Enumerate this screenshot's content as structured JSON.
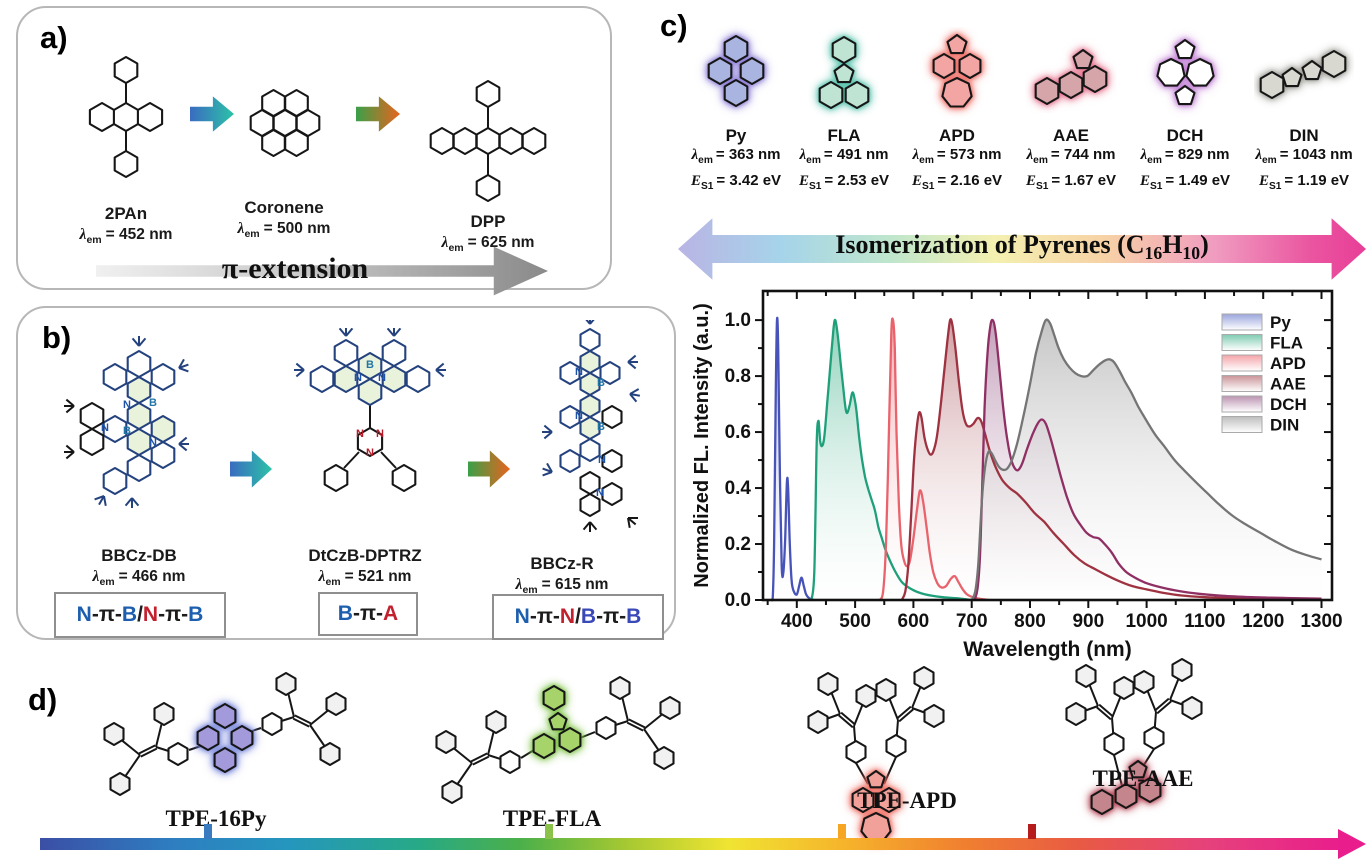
{
  "labels": {
    "lambda": "λ",
    "em": "em",
    "E": "E",
    "S1": "S1"
  },
  "panels": {
    "a": {
      "label": "a)",
      "arrow_label": "π-extension",
      "molecules": [
        {
          "name": "2PAn",
          "lambda": "= 452 nm"
        },
        {
          "name": "Coronene",
          "lambda": "= 500 nm"
        },
        {
          "name": "DPP",
          "lambda": "= 625 nm"
        }
      ]
    },
    "b": {
      "label": "b)",
      "molecules": [
        {
          "name": "BBCz-DB",
          "lambda": "= 466 nm",
          "tag": [
            {
              "t": "N",
              "c": "blue"
            },
            {
              "t": "-π-",
              "c": "black"
            },
            {
              "t": "B",
              "c": "blue"
            },
            {
              "t": "/ ",
              "c": "black"
            },
            {
              "t": "N",
              "c": "red"
            },
            {
              "t": "-π-",
              "c": "black"
            },
            {
              "t": "B",
              "c": "blue"
            }
          ]
        },
        {
          "name": "DtCzB-DPTRZ",
          "lambda": "= 521 nm",
          "tag": [
            {
              "t": "B",
              "c": "blue"
            },
            {
              "t": "-π-",
              "c": "black"
            },
            {
              "t": "A",
              "c": "red"
            }
          ]
        },
        {
          "name": "BBCz-R",
          "lambda": "= 615 nm",
          "tag": [
            {
              "t": "N",
              "c": "blue"
            },
            {
              "t": "-π-",
              "c": "black"
            },
            {
              "t": "N",
              "c": "red"
            },
            {
              "t": "/ ",
              "c": "black"
            },
            {
              "t": "B",
              "c": "indigo"
            },
            {
              "t": "-π-",
              "c": "black"
            },
            {
              "t": "B",
              "c": "indigo"
            }
          ]
        }
      ]
    },
    "c": {
      "label": "c)",
      "arrow_text": {
        "pre": "Isomerization of Pyrenes (C",
        "sub1": "16",
        "mid": "H",
        "sub2": "10",
        "post": ")"
      },
      "molecules": [
        {
          "name": "Py",
          "key": "py",
          "lambda": "= 363 nm",
          "es1": "= 3.42 eV",
          "fill": "#a9b4e0",
          "glow": "#8b7ed6"
        },
        {
          "name": "FLA",
          "key": "fla",
          "lambda": "= 491 nm",
          "es1": "= 2.53 eV",
          "fill": "#bfe4d4",
          "glow": "#56c2ac"
        },
        {
          "name": "APD",
          "key": "apd",
          "lambda": "= 573 nm",
          "es1": "= 2.16 eV",
          "fill": "#f2a5a2",
          "glow": "#ee6a62"
        },
        {
          "name": "AAE",
          "key": "aae",
          "lambda": "= 744 nm",
          "es1": "= 1.67 eV",
          "fill": "#d6a5a9",
          "glow": "#e4738e"
        },
        {
          "name": "DCH",
          "key": "dch",
          "lambda": "= 829 nm",
          "es1": "= 1.49 eV",
          "fill": "#ffffff",
          "glow": "#c07cd4"
        },
        {
          "name": "DIN",
          "key": "din",
          "lambda": "= 1043 nm",
          "es1": "= 1.19 eV",
          "fill": "#d9d8d0",
          "glow": "#9d9c95"
        }
      ]
    },
    "d": {
      "label": "d)",
      "molecules": [
        {
          "name": "TPE-16Py",
          "key": "tpe16py",
          "fill": "#a29ada",
          "glow": "#6f7fd8",
          "tick": "#3a7bbf"
        },
        {
          "name": "TPE-FLA",
          "key": "tpefla",
          "fill": "#a6d46b",
          "glow": "#7cc242",
          "tick": "#8bc34a"
        },
        {
          "name": "TPE-APD",
          "key": "tpeapd",
          "fill": "#f2a09a",
          "glow": "#ee655a",
          "tick": "#f6a623"
        },
        {
          "name": "TPE-AAE",
          "key": "tpeaae",
          "fill": "#c4868c",
          "glow": "#b64455",
          "tick": "#b71c1c"
        }
      ]
    }
  },
  "chart_data": {
    "type": "line",
    "xlabel": "Wavelength (nm)",
    "ylabel": "Normalized FL. Intensity (a.u.)",
    "xlim": [
      342,
      1318
    ],
    "ylim": [
      0,
      1.104
    ],
    "x_ticks": [
      400,
      500,
      600,
      700,
      800,
      900,
      1000,
      1100,
      1200,
      1300
    ],
    "y_ticks": [
      0.0,
      0.2,
      0.4,
      0.6,
      0.8,
      1.0
    ],
    "grid": false,
    "legend_position": "upper right",
    "series": [
      {
        "name": "Py",
        "line_color": "#4753b8",
        "fill_color": "#9aa5dd",
        "points": [
          [
            357,
            0
          ],
          [
            359,
            0.02
          ],
          [
            361,
            0.2
          ],
          [
            364,
            0.75
          ],
          [
            366,
            1.0
          ],
          [
            368,
            0.9
          ],
          [
            371,
            0.45
          ],
          [
            374,
            0.12
          ],
          [
            377,
            0.1
          ],
          [
            380,
            0.22
          ],
          [
            383,
            0.42
          ],
          [
            385,
            0.4
          ],
          [
            388,
            0.2
          ],
          [
            391,
            0.07
          ],
          [
            395,
            0.03
          ],
          [
            400,
            0.02
          ],
          [
            404,
            0.05
          ],
          [
            408,
            0.08
          ],
          [
            412,
            0.05
          ],
          [
            416,
            0.02
          ],
          [
            422,
            0.005
          ],
          [
            430,
            0
          ]
        ]
      },
      {
        "name": "FLA",
        "line_color": "#1fa07a",
        "fill_color": "#7ecbb0",
        "points": [
          [
            425,
            0
          ],
          [
            430,
            0.1
          ],
          [
            434,
            0.55
          ],
          [
            437,
            0.64
          ],
          [
            440,
            0.57
          ],
          [
            443,
            0.55
          ],
          [
            447,
            0.58
          ],
          [
            452,
            0.7
          ],
          [
            458,
            0.85
          ],
          [
            463,
            0.97
          ],
          [
            466,
            1.0
          ],
          [
            470,
            0.95
          ],
          [
            475,
            0.85
          ],
          [
            480,
            0.75
          ],
          [
            484,
            0.68
          ],
          [
            487,
            0.67
          ],
          [
            491,
            0.7
          ],
          [
            495,
            0.74
          ],
          [
            498,
            0.73
          ],
          [
            502,
            0.68
          ],
          [
            507,
            0.58
          ],
          [
            512,
            0.5
          ],
          [
            517,
            0.44
          ],
          [
            522,
            0.4
          ],
          [
            528,
            0.36
          ],
          [
            534,
            0.32
          ],
          [
            540,
            0.26
          ],
          [
            546,
            0.22
          ],
          [
            552,
            0.18
          ],
          [
            562,
            0.13
          ],
          [
            572,
            0.09
          ],
          [
            582,
            0.06
          ],
          [
            600,
            0.035
          ],
          [
            620,
            0.02
          ],
          [
            650,
            0.01
          ],
          [
            680,
            0.005
          ],
          [
            700,
            0
          ]
        ]
      },
      {
        "name": "APD",
        "line_color": "#e8636c",
        "fill_color": "#f4a3a8",
        "points": [
          [
            542,
            0
          ],
          [
            548,
            0.03
          ],
          [
            553,
            0.2
          ],
          [
            558,
            0.6
          ],
          [
            562,
            0.95
          ],
          [
            565,
            1.0
          ],
          [
            568,
            0.9
          ],
          [
            571,
            0.6
          ],
          [
            575,
            0.35
          ],
          [
            579,
            0.2
          ],
          [
            584,
            0.14
          ],
          [
            589,
            0.12
          ],
          [
            594,
            0.14
          ],
          [
            600,
            0.22
          ],
          [
            606,
            0.32
          ],
          [
            611,
            0.39
          ],
          [
            616,
            0.36
          ],
          [
            622,
            0.27
          ],
          [
            628,
            0.17
          ],
          [
            634,
            0.1
          ],
          [
            641,
            0.06
          ],
          [
            648,
            0.045
          ],
          [
            656,
            0.05
          ],
          [
            664,
            0.075
          ],
          [
            671,
            0.085
          ],
          [
            677,
            0.065
          ],
          [
            684,
            0.04
          ],
          [
            692,
            0.02
          ],
          [
            702,
            0.01
          ],
          [
            715,
            0.004
          ],
          [
            730,
            0
          ]
        ]
      },
      {
        "name": "AAE",
        "line_color": "#9e3240",
        "fill_color": "#c99297",
        "points": [
          [
            580,
            0
          ],
          [
            586,
            0.03
          ],
          [
            591,
            0.12
          ],
          [
            596,
            0.3
          ],
          [
            601,
            0.5
          ],
          [
            606,
            0.62
          ],
          [
            610,
            0.67
          ],
          [
            614,
            0.65
          ],
          [
            619,
            0.58
          ],
          [
            624,
            0.54
          ],
          [
            629,
            0.52
          ],
          [
            634,
            0.53
          ],
          [
            640,
            0.58
          ],
          [
            646,
            0.68
          ],
          [
            652,
            0.8
          ],
          [
            658,
            0.92
          ],
          [
            663,
            1.0
          ],
          [
            667,
            0.98
          ],
          [
            672,
            0.9
          ],
          [
            678,
            0.78
          ],
          [
            684,
            0.68
          ],
          [
            690,
            0.63
          ],
          [
            696,
            0.62
          ],
          [
            703,
            0.63
          ],
          [
            710,
            0.65
          ],
          [
            716,
            0.64
          ],
          [
            722,
            0.6
          ],
          [
            730,
            0.54
          ],
          [
            740,
            0.48
          ],
          [
            752,
            0.43
          ],
          [
            765,
            0.4
          ],
          [
            778,
            0.38
          ],
          [
            792,
            0.35
          ],
          [
            808,
            0.31
          ],
          [
            824,
            0.28
          ],
          [
            840,
            0.24
          ],
          [
            858,
            0.2
          ],
          [
            876,
            0.16
          ],
          [
            894,
            0.13
          ],
          [
            912,
            0.11
          ],
          [
            930,
            0.09
          ],
          [
            950,
            0.07
          ],
          [
            975,
            0.05
          ],
          [
            1000,
            0.038
          ],
          [
            1030,
            0.025
          ],
          [
            1060,
            0.016
          ],
          [
            1100,
            0.01
          ],
          [
            1150,
            0.006
          ],
          [
            1200,
            0.004
          ],
          [
            1300,
            0.003
          ]
        ]
      },
      {
        "name": "DCH",
        "line_color": "#8f2f63",
        "fill_color": "#bb93b1",
        "points": [
          [
            705,
            0
          ],
          [
            710,
            0.04
          ],
          [
            714,
            0.15
          ],
          [
            718,
            0.4
          ],
          [
            722,
            0.68
          ],
          [
            727,
            0.88
          ],
          [
            732,
            0.98
          ],
          [
            736,
            1.0
          ],
          [
            740,
            0.97
          ],
          [
            745,
            0.88
          ],
          [
            750,
            0.77
          ],
          [
            756,
            0.65
          ],
          [
            762,
            0.56
          ],
          [
            768,
            0.5
          ],
          [
            774,
            0.47
          ],
          [
            780,
            0.465
          ],
          [
            787,
            0.49
          ],
          [
            795,
            0.54
          ],
          [
            804,
            0.59
          ],
          [
            813,
            0.63
          ],
          [
            820,
            0.645
          ],
          [
            827,
            0.63
          ],
          [
            835,
            0.58
          ],
          [
            844,
            0.51
          ],
          [
            853,
            0.44
          ],
          [
            863,
            0.37
          ],
          [
            874,
            0.31
          ],
          [
            886,
            0.27
          ],
          [
            897,
            0.24
          ],
          [
            908,
            0.225
          ],
          [
            918,
            0.22
          ],
          [
            928,
            0.2
          ],
          [
            940,
            0.17
          ],
          [
            952,
            0.13
          ],
          [
            965,
            0.1
          ],
          [
            980,
            0.08
          ],
          [
            1000,
            0.06
          ],
          [
            1025,
            0.045
          ],
          [
            1055,
            0.032
          ],
          [
            1090,
            0.022
          ],
          [
            1130,
            0.015
          ],
          [
            1180,
            0.01
          ],
          [
            1240,
            0.007
          ],
          [
            1300,
            0.005
          ]
        ]
      },
      {
        "name": "DIN",
        "line_color": "#757575",
        "fill_color": "#bdbdbd",
        "points": [
          [
            700,
            0
          ],
          [
            706,
            0.03
          ],
          [
            711,
            0.12
          ],
          [
            715,
            0.27
          ],
          [
            719,
            0.4
          ],
          [
            724,
            0.49
          ],
          [
            729,
            0.53
          ],
          [
            734,
            0.525
          ],
          [
            740,
            0.5
          ],
          [
            747,
            0.475
          ],
          [
            754,
            0.465
          ],
          [
            761,
            0.47
          ],
          [
            769,
            0.5
          ],
          [
            778,
            0.56
          ],
          [
            788,
            0.65
          ],
          [
            799,
            0.76
          ],
          [
            810,
            0.88
          ],
          [
            820,
            0.96
          ],
          [
            827,
            1.0
          ],
          [
            834,
            0.99
          ],
          [
            841,
            0.95
          ],
          [
            849,
            0.9
          ],
          [
            858,
            0.86
          ],
          [
            868,
            0.83
          ],
          [
            878,
            0.81
          ],
          [
            888,
            0.8
          ],
          [
            898,
            0.8
          ],
          [
            908,
            0.82
          ],
          [
            918,
            0.84
          ],
          [
            928,
            0.855
          ],
          [
            936,
            0.86
          ],
          [
            944,
            0.85
          ],
          [
            953,
            0.82
          ],
          [
            963,
            0.78
          ],
          [
            974,
            0.74
          ],
          [
            986,
            0.69
          ],
          [
            1000,
            0.64
          ],
          [
            1015,
            0.59
          ],
          [
            1030,
            0.55
          ],
          [
            1048,
            0.5
          ],
          [
            1066,
            0.46
          ],
          [
            1085,
            0.42
          ],
          [
            1105,
            0.38
          ],
          [
            1125,
            0.34
          ],
          [
            1148,
            0.3
          ],
          [
            1170,
            0.27
          ],
          [
            1195,
            0.24
          ],
          [
            1220,
            0.21
          ],
          [
            1248,
            0.18
          ],
          [
            1275,
            0.16
          ],
          [
            1300,
            0.145
          ]
        ]
      }
    ]
  }
}
